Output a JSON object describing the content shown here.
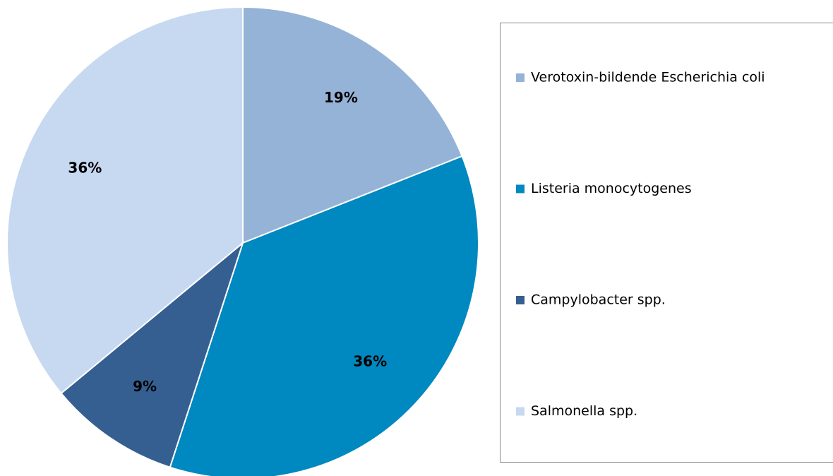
{
  "chart_data": {
    "type": "pie",
    "categories": [
      "Verotoxin-bildende Escherichia coli",
      "Listeria monocytogenes",
      "Campylobacter spp.",
      "Salmonella spp."
    ],
    "values": [
      19,
      36,
      9,
      36
    ],
    "value_labels": [
      "19%",
      "36%",
      "9%",
      "36%"
    ],
    "colors": [
      "#95b3d7",
      "#0088c0",
      "#365f91",
      "#c6d9f0"
    ],
    "legend": "right"
  }
}
